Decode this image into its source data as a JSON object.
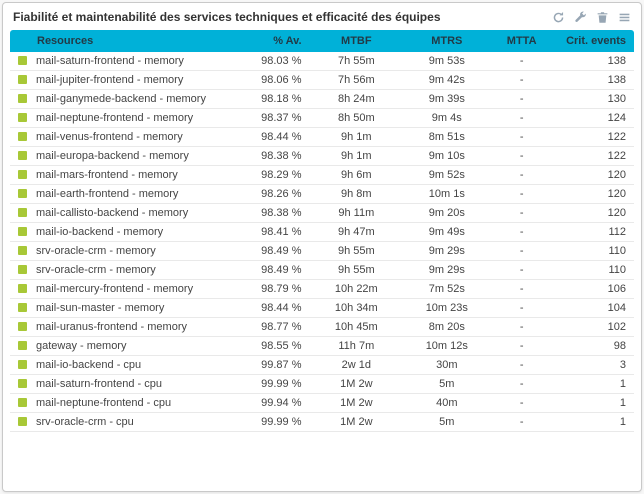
{
  "widget": {
    "title": "Fiabilité et maintenabilité des services techniques et efficacité des équipes",
    "toolbar_icons": [
      "refresh-icon",
      "wrench-icon",
      "trash-icon",
      "menu-icon"
    ]
  },
  "table": {
    "columns": [
      "Resources",
      "% Av.",
      "MTBF",
      "MTRS",
      "MTTA",
      "Crit. events"
    ],
    "rows": [
      {
        "status": "up",
        "resource": "mail-saturn-frontend - memory",
        "availability": "98.03 %",
        "mtbf": "7h 55m",
        "mtrs": "9m 53s",
        "mtta": "-",
        "crit_events": "138"
      },
      {
        "status": "up",
        "resource": "mail-jupiter-frontend - memory",
        "availability": "98.06 %",
        "mtbf": "7h 56m",
        "mtrs": "9m 42s",
        "mtta": "-",
        "crit_events": "138"
      },
      {
        "status": "up",
        "resource": "mail-ganymede-backend - memory",
        "availability": "98.18 %",
        "mtbf": "8h 24m",
        "mtrs": "9m 39s",
        "mtta": "-",
        "crit_events": "130"
      },
      {
        "status": "up",
        "resource": "mail-neptune-frontend - memory",
        "availability": "98.37 %",
        "mtbf": "8h 50m",
        "mtrs": "9m 4s",
        "mtta": "-",
        "crit_events": "124"
      },
      {
        "status": "up",
        "resource": "mail-venus-frontend - memory",
        "availability": "98.44 %",
        "mtbf": "9h 1m",
        "mtrs": "8m 51s",
        "mtta": "-",
        "crit_events": "122"
      },
      {
        "status": "up",
        "resource": "mail-europa-backend - memory",
        "availability": "98.38 %",
        "mtbf": "9h 1m",
        "mtrs": "9m 10s",
        "mtta": "-",
        "crit_events": "122"
      },
      {
        "status": "up",
        "resource": "mail-mars-frontend - memory",
        "availability": "98.29 %",
        "mtbf": "9h 6m",
        "mtrs": "9m 52s",
        "mtta": "-",
        "crit_events": "120"
      },
      {
        "status": "up",
        "resource": "mail-earth-frontend - memory",
        "availability": "98.26 %",
        "mtbf": "9h 8m",
        "mtrs": "10m 1s",
        "mtta": "-",
        "crit_events": "120"
      },
      {
        "status": "up",
        "resource": "mail-callisto-backend - memory",
        "availability": "98.38 %",
        "mtbf": "9h 11m",
        "mtrs": "9m 20s",
        "mtta": "-",
        "crit_events": "120"
      },
      {
        "status": "up",
        "resource": "mail-io-backend - memory",
        "availability": "98.41 %",
        "mtbf": "9h 47m",
        "mtrs": "9m 49s",
        "mtta": "-",
        "crit_events": "112"
      },
      {
        "status": "up",
        "resource": "srv-oracle-crm - memory",
        "availability": "98.49 %",
        "mtbf": "9h 55m",
        "mtrs": "9m 29s",
        "mtta": "-",
        "crit_events": "110"
      },
      {
        "status": "up",
        "resource": "srv-oracle-crm - memory",
        "availability": "98.49 %",
        "mtbf": "9h 55m",
        "mtrs": "9m 29s",
        "mtta": "-",
        "crit_events": "110"
      },
      {
        "status": "up",
        "resource": "mail-mercury-frontend - memory",
        "availability": "98.79 %",
        "mtbf": "10h 22m",
        "mtrs": "7m 52s",
        "mtta": "-",
        "crit_events": "106"
      },
      {
        "status": "up",
        "resource": "mail-sun-master - memory",
        "availability": "98.44 %",
        "mtbf": "10h 34m",
        "mtrs": "10m 23s",
        "mtta": "-",
        "crit_events": "104"
      },
      {
        "status": "up",
        "resource": "mail-uranus-frontend - memory",
        "availability": "98.77 %",
        "mtbf": "10h 45m",
        "mtrs": "8m 20s",
        "mtta": "-",
        "crit_events": "102"
      },
      {
        "status": "up",
        "resource": "gateway - memory",
        "availability": "98.55 %",
        "mtbf": "11h 7m",
        "mtrs": "10m 12s",
        "mtta": "-",
        "crit_events": "98"
      },
      {
        "status": "up",
        "resource": "mail-io-backend - cpu",
        "availability": "99.87 %",
        "mtbf": "2w 1d",
        "mtrs": "30m",
        "mtta": "-",
        "crit_events": "3"
      },
      {
        "status": "up",
        "resource": "mail-saturn-frontend - cpu",
        "availability": "99.99 %",
        "mtbf": "1M 2w",
        "mtrs": "5m",
        "mtta": "-",
        "crit_events": "1"
      },
      {
        "status": "up",
        "resource": "mail-neptune-frontend - cpu",
        "availability": "99.94 %",
        "mtbf": "1M 2w",
        "mtrs": "40m",
        "mtta": "-",
        "crit_events": "1"
      },
      {
        "status": "up",
        "resource": "srv-oracle-crm - cpu",
        "availability": "99.99 %",
        "mtbf": "1M 2w",
        "mtrs": "5m",
        "mtta": "-",
        "crit_events": "1"
      }
    ]
  },
  "colors": {
    "header_bg": "#00b1d8",
    "status_up": "#a8c837",
    "icon_color": "#97a6b4",
    "title_color": "#333333",
    "row_text": "#444444",
    "header_text": "#223a46"
  }
}
